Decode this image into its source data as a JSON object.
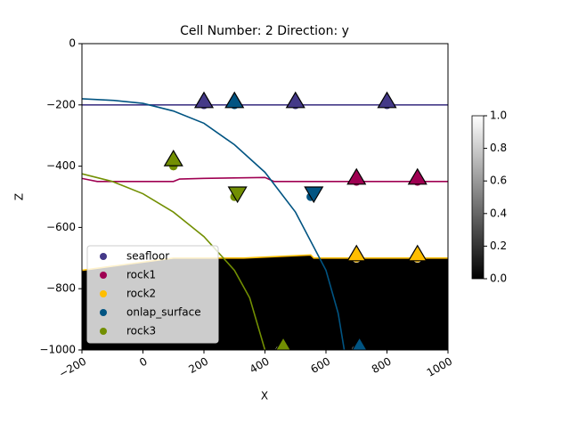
{
  "chart_data": {
    "type": "scatter",
    "title": "Cell Number: 2 Direction: y",
    "x_label": "X",
    "y_label": "Z",
    "xlim": [
      -200,
      1000
    ],
    "ylim": [
      -1000,
      0
    ],
    "xticks": [
      {
        "value": -200,
        "label": "−200"
      },
      0,
      200,
      400,
      600,
      800,
      1000
    ],
    "yticks": [
      0,
      {
        "value": -200,
        "label": "−200"
      },
      {
        "value": -400,
        "label": "−400"
      },
      {
        "value": -600,
        "label": "−600"
      },
      {
        "value": -800,
        "label": "−800"
      },
      {
        "value": -1000,
        "label": "−1000"
      }
    ],
    "legend": "lower left",
    "block_color": "#000000",
    "series": [
      {
        "name": "seafloor",
        "color": "#443988",
        "x": [
          200,
          500,
          800
        ],
        "values": [
          -200,
          -200,
          -200
        ],
        "orientations": {
          "x": [
            200,
            500,
            800
          ],
          "values": [
            -200,
            -200,
            -200
          ],
          "pointing": [
            "up",
            "up",
            "up"
          ]
        },
        "contact": {
          "x": [
            -200,
            1000
          ],
          "values": [
            -200,
            -200
          ]
        }
      },
      {
        "name": "rock1",
        "color": "#9f0052",
        "x": [
          700,
          900
        ],
        "values": [
          -450,
          -450
        ],
        "orientations": {
          "x": [
            700,
            900
          ],
          "values": [
            -450,
            -450
          ],
          "pointing": [
            "up",
            "up"
          ]
        },
        "contact": {
          "x": [
            -200,
            -150,
            100,
            120,
            200,
            400,
            430,
            1000
          ],
          "values": [
            -440,
            -450,
            -450,
            -442,
            -440,
            -437,
            -450,
            -450
          ]
        }
      },
      {
        "name": "rock2",
        "color": "#ffbe00",
        "x": [
          700,
          900
        ],
        "values": [
          -700,
          -700
        ],
        "orientations": {
          "x": [
            700,
            900
          ],
          "values": [
            -700,
            -700
          ],
          "pointing": [
            "up",
            "up"
          ]
        },
        "contact": {
          "x": [
            -200,
            100,
            330,
            550,
            560,
            1000
          ],
          "values": [
            -740,
            -700,
            -700,
            -690,
            -700,
            -700
          ]
        }
      },
      {
        "name": "onlap_surface",
        "color": "#015482",
        "x": [
          300,
          550,
          700
        ],
        "values": [
          -200,
          -500,
          -1000
        ],
        "orientations": {
          "x": [
            300,
            560,
            710
          ],
          "values": [
            -200,
            -500,
            -1000
          ],
          "pointing": [
            "up",
            "down",
            "up"
          ]
        },
        "contact": {
          "x": [
            -200,
            -100,
            0,
            100,
            200,
            300,
            400,
            500,
            600,
            640,
            660
          ],
          "values": [
            -180,
            -185,
            -195,
            -220,
            -260,
            -330,
            -420,
            -550,
            -740,
            -880,
            -1000
          ]
        }
      },
      {
        "name": "rock3",
        "color": "#728f02",
        "x": [
          100,
          300,
          450
        ],
        "values": [
          -400,
          -500,
          -1000
        ],
        "orientations": {
          "x": [
            100,
            310,
            460
          ],
          "values": [
            -390,
            -500,
            -1000
          ],
          "pointing": [
            "up",
            "down",
            "up"
          ]
        },
        "contact": {
          "x": [
            -200,
            -100,
            0,
            100,
            200,
            300,
            350,
            400
          ],
          "values": [
            -425,
            -450,
            -490,
            -550,
            -630,
            -740,
            -830,
            -1000
          ]
        }
      }
    ],
    "colorbar": {
      "lim": [
        0,
        1
      ],
      "ticks": [
        {
          "value": 0,
          "label": "0.0"
        },
        {
          "value": 0.2,
          "label": "0.2"
        },
        {
          "value": 0.4,
          "label": "0.4"
        },
        {
          "value": 0.6,
          "label": "0.6"
        },
        {
          "value": 0.8,
          "label": "0.8"
        },
        {
          "value": 1,
          "label": "1.0"
        }
      ]
    }
  }
}
